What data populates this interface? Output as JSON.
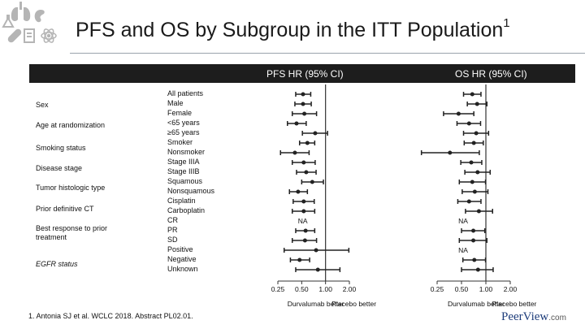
{
  "title": "PFS and OS by Subgroup in the ITT Population",
  "title_sup": "1",
  "header": {
    "pfs": "PFS HR (95% CI)",
    "os": "OS HR (95% CI)"
  },
  "groups": [
    {
      "label": "Sex",
      "italic": false
    },
    {
      "label": "Age at randomization",
      "italic": false
    },
    {
      "label": "Smoking status",
      "italic": false
    },
    {
      "label": "Disease stage",
      "italic": false
    },
    {
      "label": "Tumor histologic type",
      "italic": false
    },
    {
      "label": "Prior definitive CT",
      "italic": false
    },
    {
      "label": "Best response to prior treatment",
      "italic": false
    },
    {
      "label": "EGFR status",
      "italic": true
    }
  ],
  "subgroups": [
    "All patients",
    "Male",
    "Female",
    "<65 years",
    "≥65 years",
    "Smoker",
    "Nonsmoker",
    "Stage IIIA",
    "Stage IIIB",
    "Squamous",
    "Nonsquamous",
    "Cisplatin",
    "Carboplatin",
    "CR",
    "PR",
    "SD",
    "Positive",
    "Negative",
    "Unknown"
  ],
  "axis": {
    "ticks": [
      0.25,
      0.5,
      1.0,
      2.0
    ],
    "tick_labels": [
      "0.25",
      "0.50",
      "1.00",
      "2.00"
    ],
    "left_label": "Durvalumab better",
    "right_label": "Placebo better"
  },
  "na_text": "NA",
  "chart_data": [
    {
      "type": "forest",
      "title": "PFS HR (95% CI)",
      "scale": "log2",
      "xlim": [
        0.25,
        2.0
      ],
      "reference": 1.0,
      "categories": [
        "All patients",
        "Male",
        "Female",
        "<65 years",
        "≥65 years",
        "Smoker",
        "Nonsmoker",
        "Stage IIIA",
        "Stage IIIB",
        "Squamous",
        "Nonsquamous",
        "Cisplatin",
        "Carboplatin",
        "CR",
        "PR",
        "SD",
        "Positive",
        "Negative",
        "Unknown"
      ],
      "hr": [
        0.52,
        0.52,
        0.54,
        0.43,
        0.74,
        0.59,
        0.41,
        0.53,
        0.57,
        0.68,
        0.45,
        0.53,
        0.53,
        null,
        0.56,
        0.55,
        0.76,
        0.47,
        0.8
      ],
      "lower": [
        0.42,
        0.41,
        0.38,
        0.33,
        0.51,
        0.47,
        0.27,
        0.38,
        0.43,
        0.5,
        0.35,
        0.39,
        0.38,
        null,
        0.42,
        0.38,
        0.3,
        0.36,
        0.42
      ],
      "upper": [
        0.65,
        0.66,
        0.77,
        0.57,
        1.06,
        0.73,
        0.62,
        0.74,
        0.76,
        0.94,
        0.59,
        0.72,
        0.73,
        null,
        0.73,
        0.77,
        1.97,
        0.63,
        1.52
      ],
      "na": [
        "CR"
      ]
    },
    {
      "type": "forest",
      "title": "OS HR (95% CI)",
      "scale": "log2",
      "xlim": [
        0.25,
        2.0
      ],
      "reference": 1.0,
      "categories": [
        "All patients",
        "Male",
        "Female",
        "<65 years",
        "≥65 years",
        "Smoker",
        "Nonsmoker",
        "Stage IIIA",
        "Stage IIIB",
        "Squamous",
        "Nonsquamous",
        "Cisplatin",
        "Carboplatin",
        "CR",
        "PR",
        "SD",
        "Positive",
        "Negative",
        "Unknown"
      ],
      "hr": [
        0.68,
        0.78,
        0.46,
        0.62,
        0.76,
        0.71,
        0.36,
        0.66,
        0.79,
        0.68,
        0.73,
        0.62,
        0.82,
        null,
        0.7,
        0.7,
        null,
        0.72,
        0.8
      ],
      "lower": [
        0.53,
        0.59,
        0.3,
        0.44,
        0.53,
        0.54,
        0.16,
        0.49,
        0.55,
        0.47,
        0.51,
        0.45,
        0.56,
        null,
        0.5,
        0.47,
        null,
        0.52,
        0.5
      ],
      "upper": [
        0.87,
        1.03,
        0.71,
        0.86,
        1.08,
        0.93,
        0.83,
        0.89,
        1.13,
        0.99,
        1.06,
        0.87,
        1.21,
        null,
        0.97,
        1.03,
        null,
        0.99,
        1.23
      ],
      "na": [
        "CR",
        "Positive"
      ]
    }
  ],
  "footnote": "1. Antonia SJ et al. WCLC 2018. Abstract PL02.01.",
  "brand": {
    "name": "PeerView",
    "suffix": ".com"
  },
  "colors": {
    "logo": "#b5b5b5",
    "header_bg": "#1d1d1d",
    "plot": "#222222",
    "brand": "#1d3c7a"
  }
}
